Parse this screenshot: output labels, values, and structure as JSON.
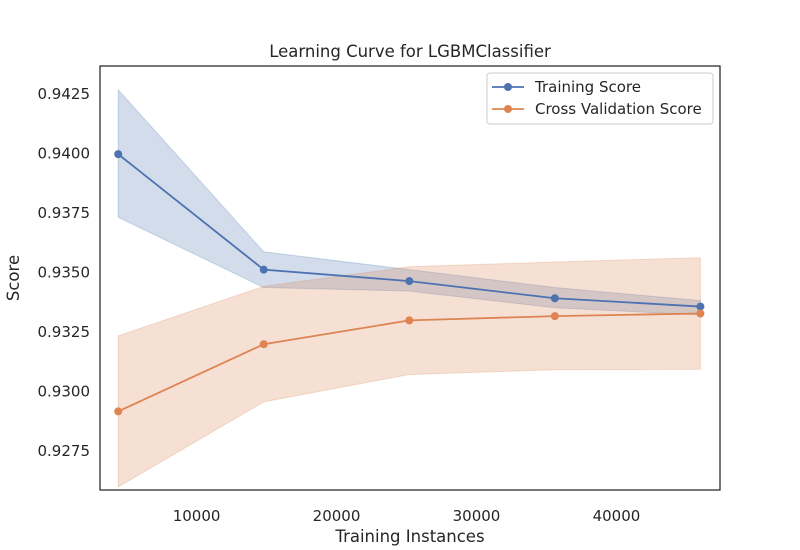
{
  "chart_data": {
    "type": "line",
    "title": "Learning Curve for LGBMClassifier",
    "xlabel": "Training Instances",
    "ylabel": "Score",
    "xlim": [
      3100,
      47400
    ],
    "ylim": [
      0.92585,
      0.94365
    ],
    "xticks": [
      10000,
      20000,
      30000,
      40000
    ],
    "xtick_labels": [
      "10000",
      "20000",
      "30000",
      "40000"
    ],
    "yticks": [
      0.9275,
      0.93,
      0.9325,
      0.935,
      0.9375,
      0.94,
      0.9425
    ],
    "ytick_labels": [
      "0.9275",
      "0.9300",
      "0.9325",
      "0.9350",
      "0.9375",
      "0.9400",
      "0.9425"
    ],
    "grid": false,
    "legend_position": "top-right",
    "x": [
      4400,
      14800,
      25200,
      35600,
      46000
    ],
    "series": [
      {
        "name": "Training Score",
        "color": "#4c72b0",
        "values": [
          0.93995,
          0.9351,
          0.93462,
          0.9339,
          0.93355
        ],
        "band_lower": [
          0.9373,
          0.93435,
          0.9342,
          0.9335,
          0.9332
        ],
        "band_upper": [
          0.94265,
          0.93585,
          0.9351,
          0.93435,
          0.9338
        ]
      },
      {
        "name": "Cross Validation Score",
        "color": "#dd8452",
        "values": [
          0.92915,
          0.93197,
          0.93297,
          0.93315,
          0.93326
        ],
        "band_lower": [
          0.92598,
          0.92955,
          0.9307,
          0.9309,
          0.93092
        ],
        "band_upper": [
          0.93232,
          0.9344,
          0.93522,
          0.93542,
          0.9356
        ]
      }
    ]
  }
}
